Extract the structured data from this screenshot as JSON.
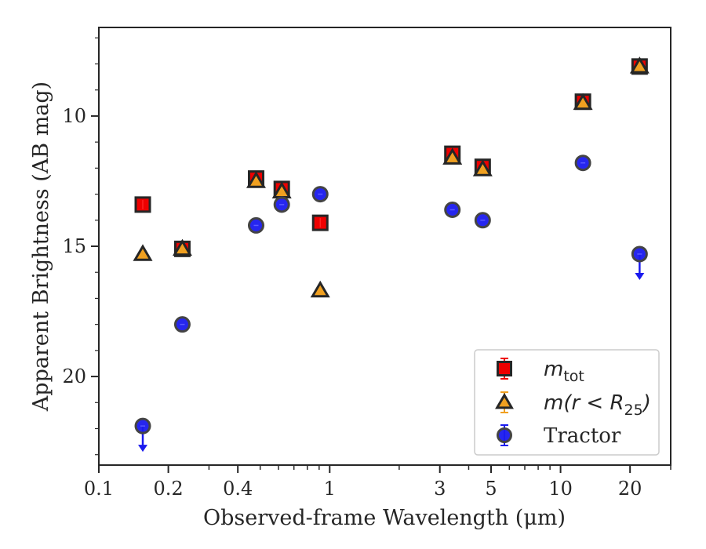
{
  "chart_data": {
    "type": "scatter",
    "xlabel": "Observed-frame Wavelength (μm)",
    "ylabel": "Apparent Brightness (AB mag)",
    "x_scale": "log",
    "xlim": [
      0.1,
      30
    ],
    "ylim": [
      23.4,
      6.6
    ],
    "y_inverted": true,
    "x_ticks": [
      {
        "value": 0.1,
        "label": "0.1"
      },
      {
        "value": 0.2,
        "label": "0.2"
      },
      {
        "value": 0.4,
        "label": "0.4"
      },
      {
        "value": 1,
        "label": "1"
      },
      {
        "value": 3,
        "label": "3"
      },
      {
        "value": 5,
        "label": "5"
      },
      {
        "value": 10,
        "label": "10"
      },
      {
        "value": 20,
        "label": "20"
      }
    ],
    "y_ticks": [
      {
        "value": 10,
        "label": "10"
      },
      {
        "value": 15,
        "label": "15"
      },
      {
        "value": 20,
        "label": "20"
      }
    ],
    "grid": false,
    "legend_position": "lower-right",
    "series": [
      {
        "name": "m_tot",
        "legend_main": "m",
        "legend_sub": "tot",
        "marker": "square",
        "color": "#ee0000",
        "points": [
          {
            "x": 0.155,
            "y": 13.4
          },
          {
            "x": 0.23,
            "y": 15.1
          },
          {
            "x": 0.48,
            "y": 12.4
          },
          {
            "x": 0.62,
            "y": 12.8
          },
          {
            "x": 0.91,
            "y": 14.1
          },
          {
            "x": 3.4,
            "y": 11.45
          },
          {
            "x": 4.6,
            "y": 11.95
          },
          {
            "x": 12.5,
            "y": 9.45
          },
          {
            "x": 22.0,
            "y": 8.1
          }
        ]
      },
      {
        "name": "m(r < R_25)",
        "legend_main": "m(r < R",
        "legend_sub": "25",
        "legend_end": ")",
        "marker": "triangle",
        "color": "#f0a020",
        "points": [
          {
            "x": 0.155,
            "y": 15.3
          },
          {
            "x": 0.23,
            "y": 15.1
          },
          {
            "x": 0.48,
            "y": 12.5
          },
          {
            "x": 0.62,
            "y": 12.9
          },
          {
            "x": 0.91,
            "y": 16.7
          },
          {
            "x": 3.4,
            "y": 11.6
          },
          {
            "x": 4.6,
            "y": 12.05
          },
          {
            "x": 12.5,
            "y": 9.5
          },
          {
            "x": 22.0,
            "y": 8.1
          }
        ]
      },
      {
        "name": "Tractor",
        "legend_main": "Tractor",
        "marker": "circle",
        "color": "#1a1aee",
        "points": [
          {
            "x": 0.155,
            "y": 21.9,
            "upper_limit": true
          },
          {
            "x": 0.23,
            "y": 18.0
          },
          {
            "x": 0.48,
            "y": 14.2
          },
          {
            "x": 0.62,
            "y": 13.4
          },
          {
            "x": 0.91,
            "y": 13.0
          },
          {
            "x": 3.4,
            "y": 13.6
          },
          {
            "x": 4.6,
            "y": 14.0
          },
          {
            "x": 12.5,
            "y": 11.8
          },
          {
            "x": 22.0,
            "y": 15.3,
            "upper_limit": true
          }
        ]
      }
    ]
  }
}
